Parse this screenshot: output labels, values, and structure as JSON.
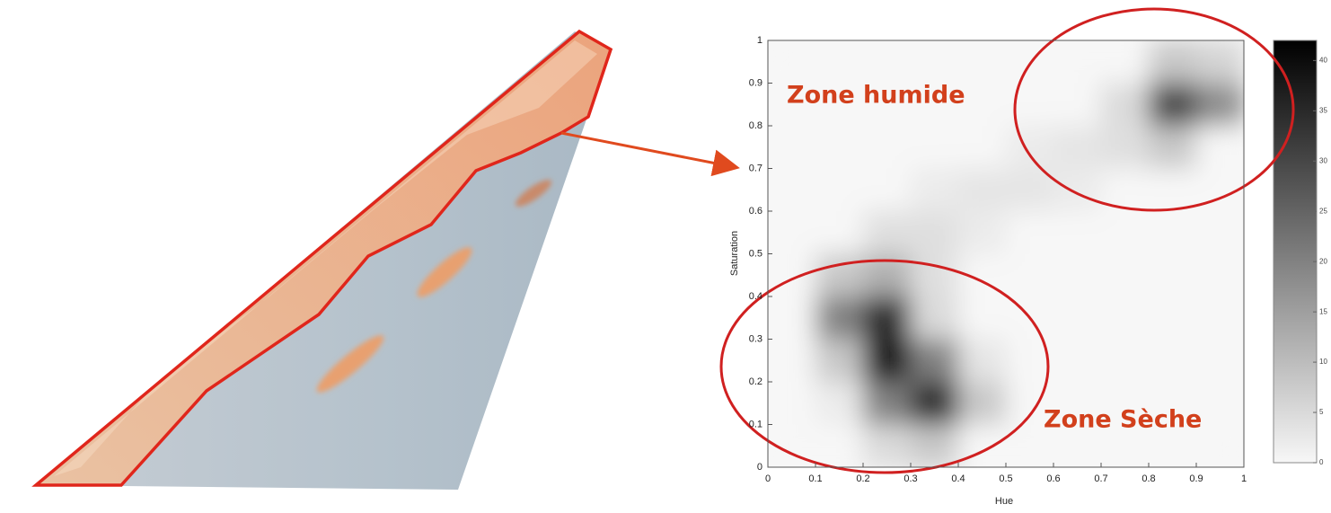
{
  "chart_data": {
    "type": "heatmap",
    "x_label": "Hue",
    "y_label": "Saturation",
    "xbins": [
      0,
      0.1,
      0.2,
      0.3,
      0.4,
      0.5,
      0.6,
      0.7,
      0.8,
      0.9,
      1
    ],
    "ybins": [
      0,
      0.1,
      0.2,
      0.3,
      0.4,
      0.5,
      0.6,
      0.7,
      0.8,
      0.9,
      1
    ],
    "values": [
      [
        0,
        0,
        5,
        8,
        0,
        0,
        0,
        0,
        0,
        0
      ],
      [
        0,
        2,
        20,
        35,
        8,
        0,
        0,
        0,
        0,
        0
      ],
      [
        0,
        8,
        38,
        20,
        3,
        0,
        0,
        0,
        0,
        0
      ],
      [
        0,
        20,
        35,
        5,
        0,
        0,
        0,
        0,
        0,
        0
      ],
      [
        0,
        8,
        12,
        4,
        0,
        0,
        0,
        0,
        0,
        0
      ],
      [
        0,
        0,
        4,
        4,
        2,
        0,
        0,
        0,
        0,
        0
      ],
      [
        0,
        0,
        0,
        2,
        3,
        3,
        2,
        0,
        0,
        0
      ],
      [
        0,
        0,
        0,
        0,
        0,
        2,
        3,
        4,
        8,
        0
      ],
      [
        0,
        0,
        0,
        0,
        0,
        0,
        0,
        5,
        30,
        18
      ],
      [
        0,
        0,
        0,
        0,
        0,
        0,
        0,
        0,
        8,
        6
      ]
    ],
    "xlim": [
      0,
      1
    ],
    "ylim": [
      0,
      1
    ],
    "xticks": [
      0,
      0.1,
      0.2,
      0.3,
      0.4,
      0.5,
      0.6,
      0.7,
      0.8,
      0.9,
      1
    ],
    "yticks": [
      0,
      0.1,
      0.2,
      0.3,
      0.4,
      0.5,
      0.6,
      0.7,
      0.8,
      0.9,
      1
    ],
    "clim": [
      0,
      42
    ],
    "cticks": [
      0,
      5,
      10,
      15,
      20,
      25,
      30,
      35,
      40
    ],
    "colormap": "gray_r",
    "annotations": [
      "Zone humide",
      "Zone Sèche"
    ]
  }
}
